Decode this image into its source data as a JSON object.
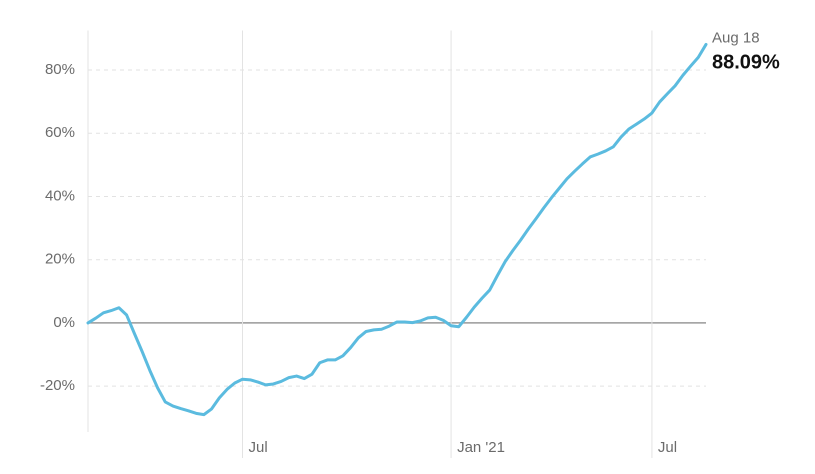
{
  "chart_data": {
    "type": "line",
    "categories": [
      null,
      null,
      null,
      null,
      null,
      null,
      null,
      null,
      null,
      null,
      null,
      null,
      null,
      null,
      null,
      null,
      null,
      null,
      null,
      null,
      "Jul",
      null,
      null,
      null,
      null,
      null,
      null,
      null,
      null,
      null,
      null,
      null,
      null,
      null,
      null,
      null,
      null,
      null,
      null,
      null,
      null,
      null,
      null,
      null,
      null,
      null,
      null,
      "Jan '21",
      null,
      null,
      null,
      null,
      null,
      null,
      null,
      null,
      null,
      null,
      null,
      null,
      null,
      null,
      null,
      null,
      null,
      null,
      null,
      null,
      null,
      null,
      null,
      null,
      null,
      "Jul",
      null,
      null,
      null,
      null,
      null,
      null,
      "Aug 18"
    ],
    "series": [
      {
        "color": "#5bbbdf",
        "values": [
          0,
          1.5,
          3.2,
          3.9,
          4.8,
          2.5,
          -3.3,
          -9,
          -15,
          -20.5,
          -25,
          -26.3,
          -27.1,
          -27.8,
          -28.6,
          -29,
          -27.2,
          -23.7,
          -21,
          -19,
          -17.8,
          -18,
          -18.7,
          -19.6,
          -19.3,
          -18.5,
          -17.3,
          -16.8,
          -17.6,
          -16.2,
          -12.6,
          -11.7,
          -11.7,
          -10.4,
          -7.8,
          -4.7,
          -2.7,
          -2.2,
          -2,
          -1,
          0.3,
          0.3,
          0.1,
          0.6,
          1.6,
          1.8,
          0.8,
          -0.9,
          -1.2,
          1.8,
          5,
          7.8,
          10.4,
          15,
          19.4,
          22.9,
          26.2,
          29.7,
          33,
          36.4,
          39.6,
          42.6,
          45.6,
          48,
          50.3,
          52.5,
          53.4,
          54.4,
          55.7,
          58.8,
          61.3,
          62.9,
          64.5,
          66.4,
          69.9,
          72.5,
          75,
          78.3,
          81.2,
          84,
          88.09
        ],
        "value_labels": [
          null,
          null,
          null,
          null,
          null,
          null,
          null,
          null,
          null,
          null,
          null,
          null,
          null,
          null,
          null,
          null,
          null,
          null,
          null,
          null,
          null,
          null,
          null,
          null,
          null,
          null,
          null,
          null,
          null,
          null,
          null,
          null,
          null,
          null,
          null,
          null,
          null,
          null,
          null,
          null,
          null,
          null,
          null,
          null,
          null,
          null,
          null,
          null,
          null,
          null,
          null,
          null,
          null,
          null,
          null,
          null,
          null,
          null,
          null,
          null,
          null,
          null,
          null,
          null,
          null,
          null,
          null,
          null,
          null,
          null,
          null,
          null,
          null,
          null,
          null,
          null,
          null,
          null,
          null,
          null,
          "88.09%"
        ]
      }
    ],
    "ylim": [
      -34.5,
      92.5
    ],
    "yticks": [
      {
        "value": -20,
        "label": "-20%"
      },
      {
        "value": 0,
        "label": "0%"
      },
      {
        "value": 20,
        "label": "20%"
      },
      {
        "value": 40,
        "label": "40%"
      },
      {
        "value": 60,
        "label": "60%"
      },
      {
        "value": 80,
        "label": "80%"
      }
    ],
    "grid": true
  }
}
